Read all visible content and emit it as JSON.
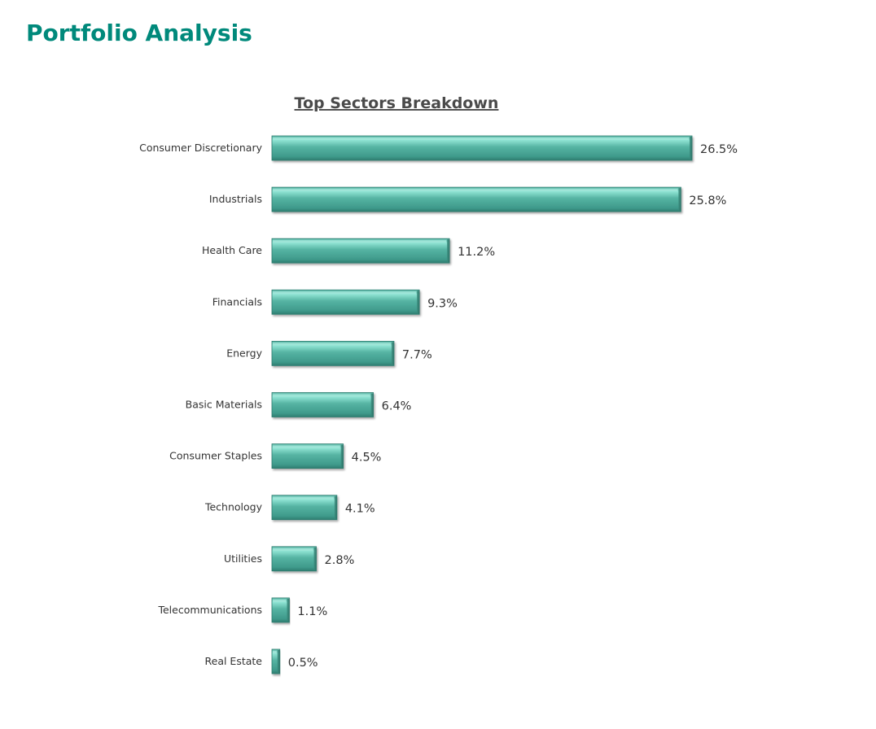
{
  "page": {
    "title": "Portfolio Analysis"
  },
  "chart_data": {
    "type": "bar",
    "orientation": "horizontal",
    "title": "Top Sectors Breakdown",
    "categories": [
      "Consumer Discretionary",
      "Industrials",
      "Health Care",
      "Financials",
      "Energy",
      "Basic Materials",
      "Consumer Staples",
      "Technology",
      "Utilities",
      "Telecommunications",
      "Real Estate"
    ],
    "values": [
      26.5,
      25.8,
      11.2,
      9.3,
      7.7,
      6.4,
      4.5,
      4.1,
      2.8,
      1.1,
      0.5
    ],
    "value_labels": [
      "26.5%",
      "25.8%",
      "11.2%",
      "9.3%",
      "7.7%",
      "6.4%",
      "4.5%",
      "4.1%",
      "2.8%",
      "1.1%",
      "0.5%"
    ],
    "xlim": [
      0,
      30
    ],
    "grid": false,
    "legend": "none",
    "colors": {
      "bar": "#4DB6A5",
      "bar_light": "#8FE3D3",
      "bar_dark": "#2E7D70",
      "title": "#00897B"
    }
  }
}
